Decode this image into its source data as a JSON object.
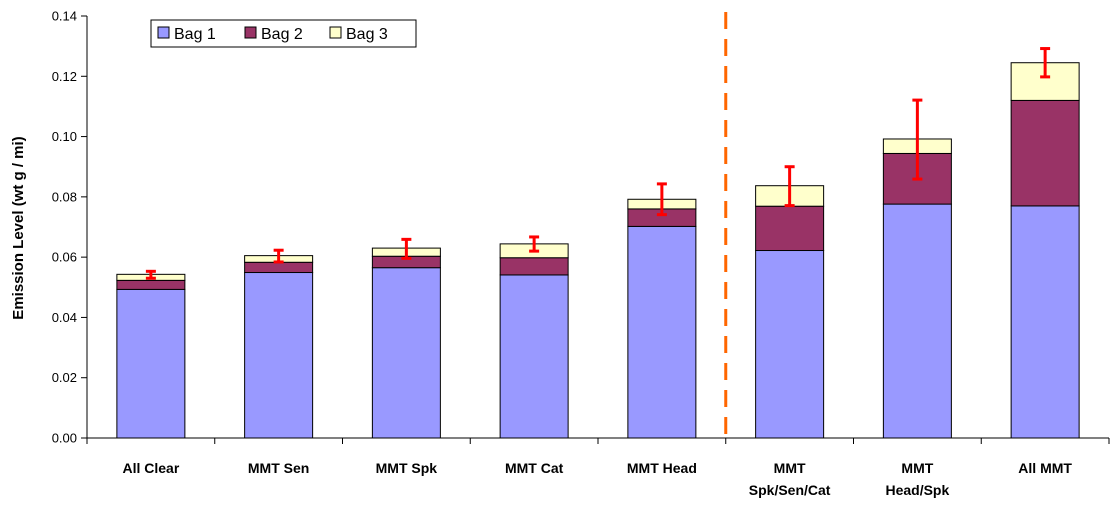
{
  "chart_data": {
    "type": "bar",
    "stacked": true,
    "title": "",
    "xlabel": "",
    "ylabel": "Emission Level (wt g / mi)",
    "ylim": [
      0,
      0.14
    ],
    "yticks": [
      "0.00",
      "0.02",
      "0.04",
      "0.06",
      "0.08",
      "0.10",
      "0.12",
      "0.14"
    ],
    "categories": [
      [
        "All Clear"
      ],
      [
        "MMT Sen"
      ],
      [
        "MMT Spk"
      ],
      [
        "MMT Cat"
      ],
      [
        "MMT Head"
      ],
      [
        "MMT",
        "Spk/Sen/Cat"
      ],
      [
        "MMT",
        "Head/Spk"
      ],
      [
        "All MMT"
      ]
    ],
    "series": [
      {
        "name": "Bag 1",
        "color": "#9999ff",
        "values": [
          0.0493,
          0.0549,
          0.0565,
          0.0541,
          0.0702,
          0.0622,
          0.0776,
          0.077
        ]
      },
      {
        "name": "Bag 2",
        "color": "#993366",
        "values": [
          0.003,
          0.0034,
          0.0038,
          0.0057,
          0.0058,
          0.0147,
          0.0168,
          0.035
        ]
      },
      {
        "name": "Bag 3",
        "color": "#ffffcc",
        "values": [
          0.002,
          0.0022,
          0.0027,
          0.0046,
          0.0032,
          0.0068,
          0.0048,
          0.0125
        ]
      }
    ],
    "error_bars": {
      "color": "#ff0000",
      "ranges": [
        [
          0.053,
          0.0553
        ],
        [
          0.0584,
          0.0623
        ],
        [
          0.0596,
          0.0659
        ],
        [
          0.062,
          0.0667
        ],
        [
          0.0741,
          0.0843
        ],
        [
          0.0771,
          0.09
        ],
        [
          0.0859,
          0.1121
        ],
        [
          0.1198,
          0.1292
        ]
      ]
    },
    "divider": {
      "after_category_index": 4,
      "color": "#ff6600",
      "style": "dashed"
    },
    "legend": {
      "placement": "top-left"
    },
    "grid": false
  }
}
